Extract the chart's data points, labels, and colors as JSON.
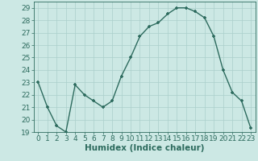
{
  "x": [
    0,
    1,
    2,
    3,
    4,
    5,
    6,
    7,
    8,
    9,
    10,
    11,
    12,
    13,
    14,
    15,
    16,
    17,
    18,
    19,
    20,
    21,
    22,
    23
  ],
  "y": [
    23,
    21,
    19.5,
    19,
    22.8,
    22,
    21.5,
    21,
    21.5,
    23.5,
    25,
    26.7,
    27.5,
    27.8,
    28.5,
    29,
    29,
    28.7,
    28.2,
    26.7,
    24,
    22.2,
    21.5,
    19.3
  ],
  "line_color": "#2d6b5e",
  "marker_color": "#2d6b5e",
  "bg_color": "#cce8e4",
  "grid_color": "#aacfcb",
  "xlabel": "Humidex (Indice chaleur)",
  "xlim": [
    -0.5,
    23.5
  ],
  "ylim": [
    19,
    29.5
  ],
  "yticks": [
    19,
    20,
    21,
    22,
    23,
    24,
    25,
    26,
    27,
    28,
    29
  ],
  "xticks": [
    0,
    1,
    2,
    3,
    4,
    5,
    6,
    7,
    8,
    9,
    10,
    11,
    12,
    13,
    14,
    15,
    16,
    17,
    18,
    19,
    20,
    21,
    22,
    23
  ],
  "tick_label_fontsize": 6.5,
  "xlabel_fontsize": 7.5,
  "axis_color": "#2d6b5e",
  "linewidth": 1.0,
  "markersize": 3.5,
  "marker": "+"
}
